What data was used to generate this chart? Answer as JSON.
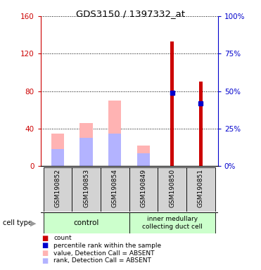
{
  "title": "GDS3150 / 1397332_at",
  "samples": [
    "GSM190852",
    "GSM190853",
    "GSM190854",
    "GSM190849",
    "GSM190850",
    "GSM190851"
  ],
  "value_absent": [
    35,
    46,
    70,
    22,
    null,
    null
  ],
  "rank_absent": [
    18,
    30,
    35,
    14,
    null,
    null
  ],
  "count_red": [
    null,
    null,
    null,
    null,
    133,
    90
  ],
  "percentile_blue": [
    null,
    null,
    null,
    null,
    49,
    42
  ],
  "ylim_left": [
    0,
    160
  ],
  "ylim_right": [
    0,
    100
  ],
  "yticks_left": [
    0,
    40,
    80,
    120,
    160
  ],
  "yticks_right": [
    0,
    25,
    50,
    75,
    100
  ],
  "left_axis_color": "#cc0000",
  "right_axis_color": "#0000cc",
  "pink_color": "#ffb3b3",
  "lavender_color": "#b3b3ff",
  "red_color": "#cc0000",
  "blue_color": "#0000cc",
  "legend_items": [
    {
      "label": "count",
      "color": "#cc0000"
    },
    {
      "label": "percentile rank within the sample",
      "color": "#0000cc"
    },
    {
      "label": "value, Detection Call = ABSENT",
      "color": "#ffb3b3"
    },
    {
      "label": "rank, Detection Call = ABSENT",
      "color": "#b3b3ff"
    }
  ]
}
